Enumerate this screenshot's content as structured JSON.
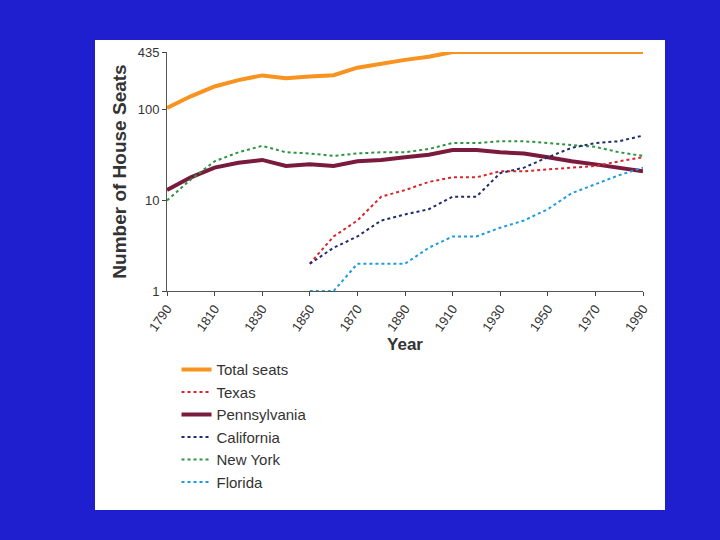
{
  "chart_data": {
    "type": "line",
    "x_label": "Year",
    "y_label": "Number of House Seats",
    "x": [
      1790,
      1800,
      1810,
      1820,
      1830,
      1840,
      1850,
      1860,
      1870,
      1880,
      1890,
      1900,
      1910,
      1920,
      1930,
      1940,
      1950,
      1960,
      1970,
      1980,
      1990
    ],
    "series": [
      {
        "name": "Total seats",
        "color": "#f7931e",
        "line_style": "solid",
        "values": [
          105,
          141,
          181,
          213,
          240,
          223,
          234,
          241,
          292,
          325,
          356,
          386,
          435,
          435,
          435,
          435,
          435,
          435,
          435,
          435,
          435
        ]
      },
      {
        "name": "Pennsylvania",
        "color": "#7a1a3c",
        "line_style": "solid",
        "values": [
          13,
          18,
          23,
          26,
          28,
          24,
          25,
          24,
          27,
          28,
          30,
          32,
          36,
          36,
          34,
          33,
          30,
          27,
          25,
          23,
          21
        ]
      },
      {
        "name": "New York",
        "color": "#2e9440",
        "line_style": "dotted",
        "values": [
          10,
          17,
          27,
          34,
          40,
          34,
          33,
          31,
          33,
          34,
          34,
          37,
          43,
          43,
          45,
          45,
          43,
          41,
          39,
          34,
          31
        ]
      },
      {
        "name": "Texas",
        "color": "#d9262c",
        "line_style": "dotted",
        "values": [
          null,
          null,
          null,
          null,
          null,
          null,
          2,
          4,
          6,
          11,
          13,
          16,
          18,
          18,
          21,
          21,
          22,
          23,
          24,
          27,
          30
        ]
      },
      {
        "name": "California",
        "color": "#1f2d6b",
        "line_style": "dotted",
        "values": [
          null,
          null,
          null,
          null,
          null,
          null,
          2,
          3,
          4,
          6,
          7,
          8,
          11,
          11,
          20,
          23,
          30,
          38,
          43,
          45,
          52
        ]
      },
      {
        "name": "Florida",
        "color": "#1e9be0",
        "line_style": "dotted",
        "values": [
          null,
          null,
          null,
          null,
          null,
          null,
          1,
          1,
          2,
          2,
          2,
          3,
          4,
          4,
          5,
          6,
          8,
          12,
          15,
          19,
          23
        ]
      }
    ],
    "xlim": [
      1790,
      1990
    ],
    "xticks": [
      1790,
      1810,
      1830,
      1850,
      1870,
      1890,
      1910,
      1930,
      1950,
      1970,
      1990
    ],
    "ylim": [
      1,
      435
    ],
    "yticks": [
      1,
      10,
      100,
      435
    ],
    "log": "y",
    "grid": false,
    "legend": "bottom"
  }
}
